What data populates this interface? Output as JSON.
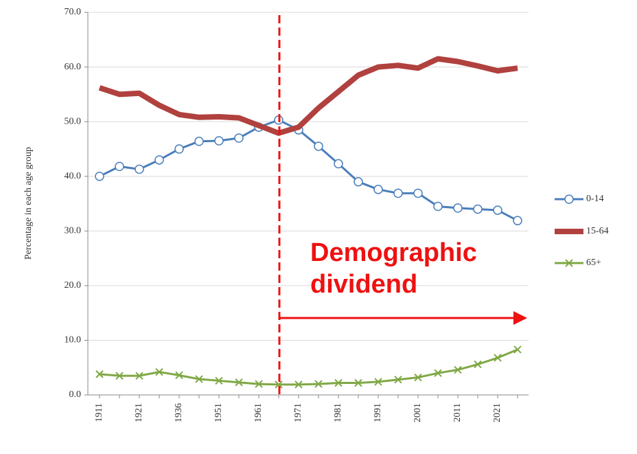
{
  "chart_data": {
    "type": "line",
    "ylabel": "Percentage in each age group",
    "annotation": "Demographic dividend",
    "categories": [
      "1911",
      null,
      "1921",
      null,
      "1936",
      null,
      "1951",
      null,
      "1961",
      null,
      "1971",
      null,
      "1981",
      null,
      "1991",
      null,
      "2001",
      null,
      "2011",
      null,
      "2021",
      null
    ],
    "ylim": [
      0,
      70
    ],
    "yticks": [
      {
        "value": 0,
        "label": "0.0"
      },
      {
        "value": 10,
        "label": "10.0"
      },
      {
        "value": 20,
        "label": "20.0"
      },
      {
        "value": 30,
        "label": "30.0"
      },
      {
        "value": 40,
        "label": "40.0"
      },
      {
        "value": 50,
        "label": "50.0"
      },
      {
        "value": 60,
        "label": "60.0"
      },
      {
        "value": 70,
        "label": "70.0"
      }
    ],
    "grid": true,
    "legend": "right",
    "series": [
      {
        "name": "0-14",
        "color": "#4a7ebb",
        "marker": "circle",
        "values": [
          40,
          41.8,
          41.3,
          43,
          45,
          46.4,
          46.5,
          47,
          49,
          50.3,
          48.5,
          45.5,
          42.3,
          39,
          37.6,
          36.9,
          36.9,
          34.5,
          34.2,
          34,
          33.8,
          31.9
        ]
      },
      {
        "name": "15-64",
        "color": "#b0413e",
        "marker": "none",
        "values": [
          56.2,
          55,
          55.2,
          53,
          51.3,
          50.8,
          50.9,
          50.7,
          49.3,
          47.9,
          49,
          52.5,
          55.5,
          58.5,
          60,
          60.3,
          59.8,
          61.5,
          61,
          60.2,
          59.3,
          59.8
        ]
      },
      {
        "name": "65+",
        "color": "#7fa845",
        "marker": "x",
        "values": [
          3.8,
          3.5,
          3.5,
          4.2,
          3.6,
          2.9,
          2.6,
          2.3,
          2,
          1.9,
          1.9,
          2,
          2.2,
          2.2,
          2.4,
          2.8,
          3.2,
          4,
          4.6,
          5.6,
          6.8,
          8.3
        ]
      }
    ]
  }
}
